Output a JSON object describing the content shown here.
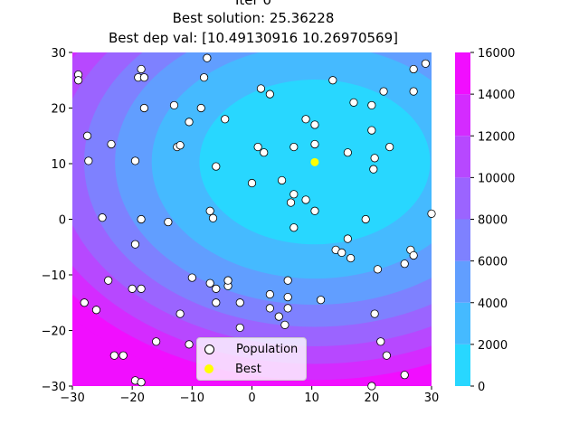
{
  "title_lines": [
    "Iter 0",
    "Best solution: 25.36228",
    "Best dep val: [10.49130916 10.26970569]"
  ],
  "chart_data": {
    "type": "scatter",
    "background": "contour",
    "contour_colormap": "cool",
    "contour_levels": [
      0,
      2000,
      4000,
      6000,
      8000,
      10000,
      12000,
      14000,
      16000
    ],
    "contour_min": [
      10.5,
      10.3
    ],
    "contour_ellipse_ratio": [
      1.3,
      1.0
    ],
    "xlim": [
      -30,
      30
    ],
    "ylim": [
      -30,
      30
    ],
    "xticks": [
      -30,
      -20,
      -10,
      0,
      10,
      20,
      30
    ],
    "yticks": [
      -30,
      -20,
      -10,
      0,
      10,
      20,
      30
    ],
    "colorbar": {
      "ticks": [
        0,
        2000,
        4000,
        6000,
        8000,
        10000,
        12000,
        14000,
        16000
      ],
      "range": [
        0,
        16000
      ]
    },
    "legend": {
      "placement": "lower-center",
      "entries": [
        "Population",
        "Best"
      ]
    },
    "series": [
      {
        "name": "Population",
        "color": "#ffffff",
        "edgecolor": "#000000",
        "points": [
          [
            -29,
            26
          ],
          [
            -29,
            25
          ],
          [
            -27.5,
            15
          ],
          [
            -27.3,
            10.5
          ],
          [
            -25,
            0.3
          ],
          [
            -23.5,
            13.5
          ],
          [
            -18.5,
            27
          ],
          [
            -19,
            25.5
          ],
          [
            -18,
            25.5
          ],
          [
            -18,
            20
          ],
          [
            -19.5,
            10.5
          ],
          [
            -18.5,
            0
          ],
          [
            -14,
            -0.5
          ],
          [
            -12.5,
            13
          ],
          [
            -12,
            13.3
          ],
          [
            -13,
            20.5
          ],
          [
            -10.5,
            17.5
          ],
          [
            -7.5,
            29
          ],
          [
            -8,
            25.5
          ],
          [
            -8.5,
            20
          ],
          [
            -4.5,
            18
          ],
          [
            -6,
            9.5
          ],
          [
            -7,
            1.5
          ],
          [
            -6.5,
            0.2
          ],
          [
            -19.5,
            -4.5
          ],
          [
            -18.5,
            -12.5
          ],
          [
            -20,
            -12.5
          ],
          [
            -24,
            -11
          ],
          [
            -28,
            -15
          ],
          [
            -26,
            -16.3
          ],
          [
            -12,
            -17
          ],
          [
            -10,
            -10.5
          ],
          [
            -7,
            -11.5
          ],
          [
            -6,
            -12.5
          ],
          [
            -4,
            -12
          ],
          [
            -4,
            -11
          ],
          [
            -6,
            -15
          ],
          [
            -2,
            -15
          ],
          [
            -2,
            -19.5
          ],
          [
            -10.5,
            -22.5
          ],
          [
            -16,
            -22
          ],
          [
            -23,
            -24.5
          ],
          [
            -21.5,
            -24.5
          ],
          [
            -19.5,
            -29
          ],
          [
            -18.5,
            -29.3
          ],
          [
            1.5,
            23.5
          ],
          [
            3,
            22.5
          ],
          [
            1,
            13
          ],
          [
            2,
            12
          ],
          [
            0,
            6.5
          ],
          [
            5,
            7
          ],
          [
            7,
            13
          ],
          [
            9,
            18
          ],
          [
            10.5,
            17
          ],
          [
            10.5,
            13.5
          ],
          [
            13.5,
            25
          ],
          [
            17,
            21
          ],
          [
            20,
            20.5
          ],
          [
            22,
            23
          ],
          [
            23,
            13
          ],
          [
            20,
            16
          ],
          [
            20.5,
            11
          ],
          [
            20.3,
            9
          ],
          [
            16,
            12
          ],
          [
            27,
            27
          ],
          [
            29,
            28
          ],
          [
            27,
            23
          ],
          [
            30,
            1
          ],
          [
            7,
            4.5
          ],
          [
            9,
            3.5
          ],
          [
            10.5,
            1.5
          ],
          [
            6.5,
            3
          ],
          [
            7,
            -1.5
          ],
          [
            14,
            -5.5
          ],
          [
            15,
            -6
          ],
          [
            16,
            -3.5
          ],
          [
            16.5,
            -7
          ],
          [
            19,
            0
          ],
          [
            21,
            -9
          ],
          [
            25.5,
            -8
          ],
          [
            26.5,
            -5.5
          ],
          [
            27,
            -6.5
          ],
          [
            20.5,
            -17
          ],
          [
            21.5,
            -22
          ],
          [
            22.5,
            -24.5
          ],
          [
            25.5,
            -28
          ],
          [
            20,
            -30
          ],
          [
            11.5,
            -14.5
          ],
          [
            6,
            -11
          ],
          [
            6,
            -14
          ],
          [
            6,
            -16
          ],
          [
            4.5,
            -17.5
          ],
          [
            5.5,
            -19
          ],
          [
            3,
            -13.5
          ],
          [
            3,
            -16
          ]
        ]
      },
      {
        "name": "Best",
        "color": "#ffff00",
        "points": [
          [
            10.49,
            10.27
          ]
        ]
      }
    ]
  }
}
